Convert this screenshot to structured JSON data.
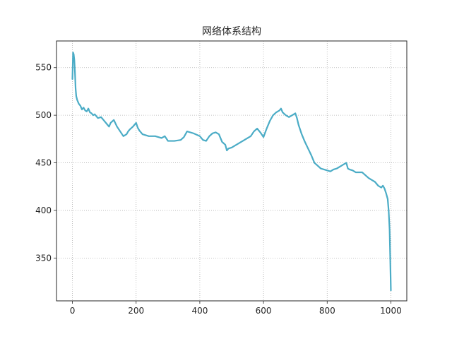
{
  "chart_data": {
    "type": "line",
    "title": "网络体系结构",
    "xlabel": "",
    "ylabel": "",
    "xlim": [
      -50,
      1050
    ],
    "ylim": [
      305,
      578
    ],
    "xticks": [
      0,
      200,
      400,
      600,
      800,
      1000
    ],
    "yticks": [
      350,
      400,
      450,
      500,
      550
    ],
    "grid": true,
    "line_color": "#4bacc6",
    "series": [
      {
        "x": [
          0,
          2,
          4,
          6,
          8,
          10,
          12,
          15,
          20,
          25,
          30,
          35,
          40,
          45,
          50,
          55,
          60,
          65,
          70,
          80,
          90,
          100,
          110,
          115,
          120,
          130,
          140,
          150,
          160,
          170,
          175,
          180,
          190,
          195,
          200,
          205,
          210,
          220,
          240,
          260,
          280,
          290,
          300,
          320,
          340,
          350,
          360,
          380,
          400,
          410,
          420,
          430,
          440,
          450,
          460,
          470,
          480,
          485,
          490,
          500,
          520,
          540,
          560,
          570,
          580,
          590,
          600,
          610,
          620,
          630,
          640,
          650,
          655,
          660,
          670,
          680,
          690,
          700,
          705,
          710,
          720,
          730,
          740,
          750,
          760,
          770,
          780,
          790,
          800,
          810,
          820,
          830,
          840,
          850,
          860,
          865,
          870,
          880,
          890,
          900,
          910,
          920,
          930,
          940,
          950,
          960,
          970,
          975,
          980,
          985,
          990,
          993,
          996,
          998,
          1000
        ],
        "y": [
          538,
          566,
          564,
          558,
          545,
          528,
          520,
          516,
          512,
          510,
          506,
          508,
          505,
          504,
          507,
          503,
          502,
          500,
          501,
          497,
          498,
          494,
          490,
          488,
          492,
          495,
          488,
          483,
          478,
          480,
          483,
          485,
          488,
          490,
          492,
          487,
          484,
          480,
          478,
          478,
          476,
          478,
          473,
          473,
          474,
          477,
          483,
          481,
          478,
          474,
          473,
          478,
          481,
          482,
          480,
          472,
          469,
          463,
          465,
          466,
          470,
          474,
          478,
          483,
          486,
          482,
          477,
          486,
          494,
          500,
          503,
          505,
          507,
          503,
          500,
          498,
          500,
          502,
          497,
          490,
          480,
          472,
          465,
          458,
          450,
          447,
          444,
          443,
          442,
          441,
          443,
          444,
          446,
          448,
          450,
          444,
          443,
          442,
          440,
          440,
          440,
          437,
          434,
          432,
          430,
          426,
          424,
          426,
          423,
          418,
          412,
          400,
          380,
          350,
          316
        ]
      }
    ]
  }
}
